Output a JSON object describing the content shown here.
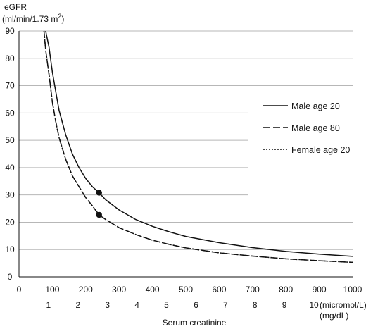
{
  "chart_data": {
    "type": "line",
    "ylabel_line1": "eGFR",
    "ylabel_line2_prefix": "(ml/min/1.73 m",
    "ylabel_line2_sup": "2",
    "ylabel_line2_suffix": ")",
    "xlabel": "Serum creatinine",
    "x_primary_ticks": [
      "0",
      "100",
      "200",
      "300",
      "400",
      "500",
      "600",
      "700",
      "800",
      "900",
      "1000"
    ],
    "x_primary_unit": "(micromol/L)",
    "x_secondary_ticks": [
      "1",
      "2",
      "3",
      "4",
      "5",
      "6",
      "7",
      "8",
      "9",
      "10"
    ],
    "x_secondary_unit": "(mg/dL)",
    "y_ticks": [
      "0",
      "10",
      "20",
      "30",
      "40",
      "50",
      "60",
      "70",
      "80",
      "90"
    ],
    "xlim": [
      0,
      1000
    ],
    "ylim": [
      0,
      90
    ],
    "grid": "horizontal",
    "legend_position": "right",
    "series": [
      {
        "name": "Male age 20",
        "style": "solid",
        "color": "#111111",
        "points": [
          [
            80,
            90
          ],
          [
            90,
            84
          ],
          [
            100,
            75
          ],
          [
            110,
            68
          ],
          [
            120,
            61
          ],
          [
            140,
            52
          ],
          [
            160,
            45
          ],
          [
            180,
            40
          ],
          [
            200,
            36
          ],
          [
            220,
            33
          ],
          [
            240,
            30.8
          ],
          [
            260,
            28.2
          ],
          [
            300,
            24.5
          ],
          [
            350,
            21
          ],
          [
            400,
            18.5
          ],
          [
            450,
            16.5
          ],
          [
            500,
            14.8
          ],
          [
            600,
            12.5
          ],
          [
            700,
            10.7
          ],
          [
            800,
            9.3
          ],
          [
            900,
            8.3
          ],
          [
            1000,
            7.5
          ]
        ]
      },
      {
        "name": "Male age 80",
        "style": "dashed",
        "color": "#111111",
        "points": [
          [
            75,
            90
          ],
          [
            80,
            83
          ],
          [
            90,
            74
          ],
          [
            100,
            64
          ],
          [
            110,
            57
          ],
          [
            120,
            51
          ],
          [
            140,
            43
          ],
          [
            160,
            37
          ],
          [
            180,
            33
          ],
          [
            200,
            29
          ],
          [
            220,
            26
          ],
          [
            240,
            22.7
          ],
          [
            260,
            21
          ],
          [
            300,
            18
          ],
          [
            350,
            15.5
          ],
          [
            400,
            13.4
          ],
          [
            450,
            11.9
          ],
          [
            500,
            10.6
          ],
          [
            600,
            8.8
          ],
          [
            700,
            7.6
          ],
          [
            800,
            6.6
          ],
          [
            900,
            5.9
          ],
          [
            1000,
            5.3
          ]
        ]
      },
      {
        "name": "Female age 20",
        "style": "dotted",
        "color": "#111111",
        "points": [
          [
            75,
            90
          ],
          [
            80,
            83
          ],
          [
            90,
            74
          ],
          [
            100,
            64
          ],
          [
            110,
            57
          ],
          [
            120,
            51
          ],
          [
            140,
            43
          ],
          [
            160,
            37
          ],
          [
            180,
            33
          ],
          [
            200,
            29
          ],
          [
            220,
            26
          ],
          [
            240,
            22.7
          ],
          [
            260,
            21
          ],
          [
            300,
            18
          ],
          [
            350,
            15.5
          ],
          [
            400,
            13.4
          ],
          [
            450,
            11.9
          ],
          [
            500,
            10.6
          ],
          [
            600,
            8.8
          ],
          [
            700,
            7.6
          ],
          [
            800,
            6.6
          ],
          [
            900,
            5.9
          ],
          [
            1000,
            5.3
          ]
        ]
      }
    ],
    "markers": [
      {
        "x": 240,
        "y": 30.8
      },
      {
        "x": 240,
        "y": 22.7
      }
    ]
  }
}
